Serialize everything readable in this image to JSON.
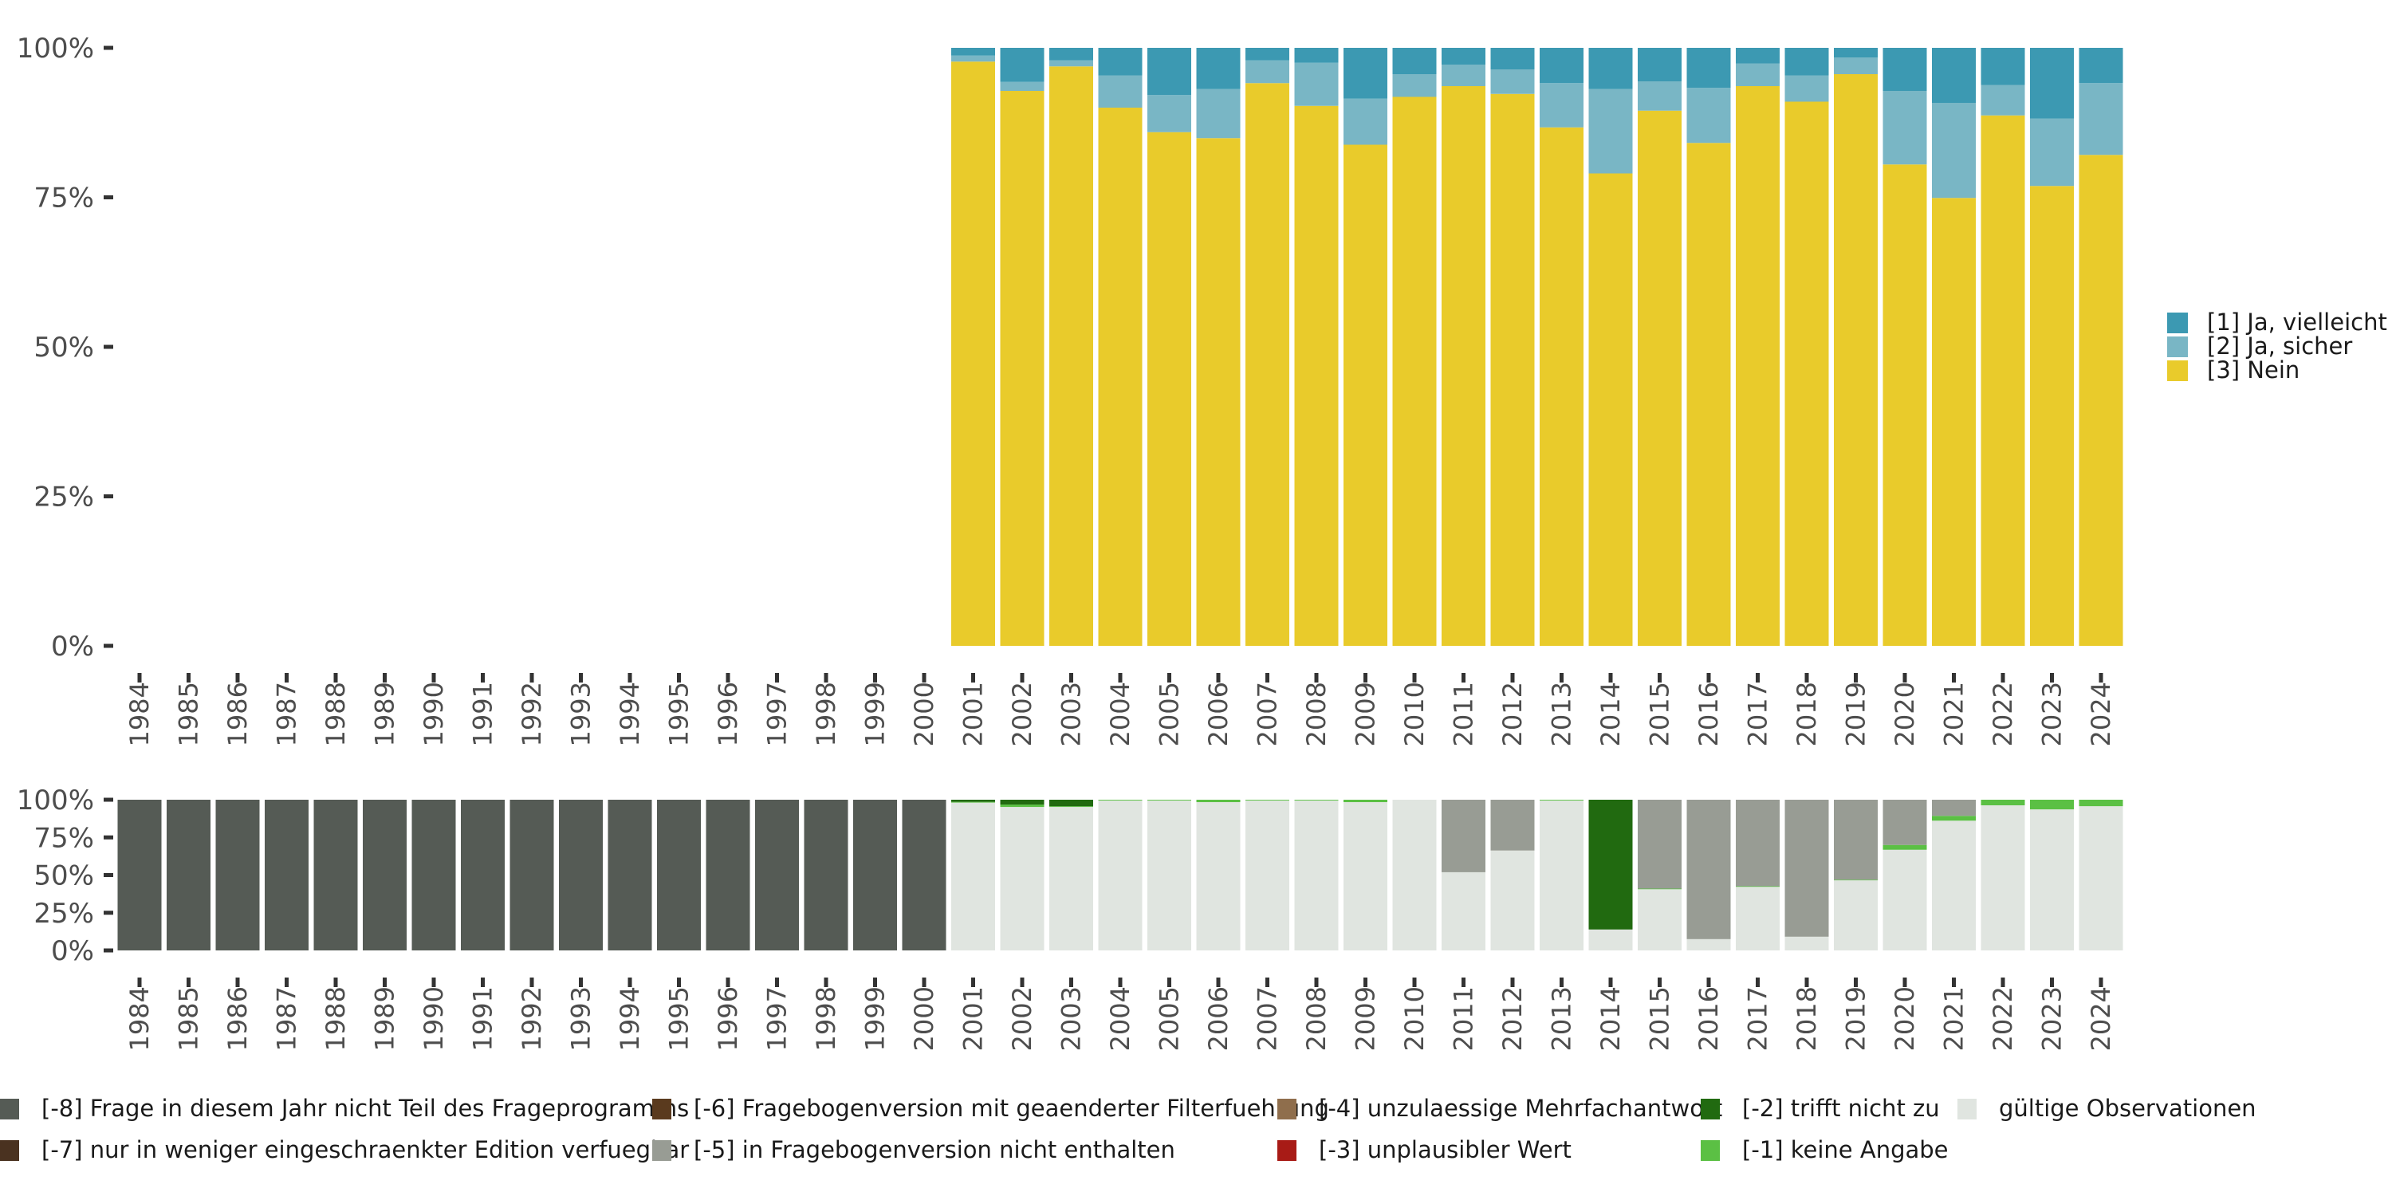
{
  "chart_data": [
    {
      "type": "bar",
      "stacked": true,
      "normalized": true,
      "title": "",
      "xlabel": "",
      "ylabel": "",
      "ylim": [
        0,
        1
      ],
      "yticks": [
        "0%",
        "25%",
        "50%",
        "75%",
        "100%"
      ],
      "legend_position": "right",
      "categories": [
        "1984",
        "1985",
        "1986",
        "1987",
        "1988",
        "1989",
        "1990",
        "1991",
        "1992",
        "1993",
        "1994",
        "1995",
        "1996",
        "1997",
        "1998",
        "1999",
        "2000",
        "2001",
        "2002",
        "2003",
        "2004",
        "2005",
        "2006",
        "2007",
        "2008",
        "2009",
        "2010",
        "2011",
        "2012",
        "2013",
        "2014",
        "2015",
        "2016",
        "2017",
        "2018",
        "2019",
        "2020",
        "2021",
        "2022",
        "2023",
        "2024"
      ],
      "series": [
        {
          "name": "[3] Nein",
          "color": "#E9CB2B",
          "values": [
            null,
            null,
            null,
            null,
            null,
            null,
            null,
            null,
            null,
            null,
            null,
            null,
            null,
            null,
            null,
            null,
            null,
            97.7,
            92.8,
            96.9,
            90.0,
            85.9,
            84.9,
            94.1,
            90.3,
            83.8,
            91.8,
            93.6,
            92.3,
            86.7,
            79.0,
            89.5,
            84.1,
            93.6,
            91.0,
            95.6,
            80.5,
            74.9,
            88.7,
            76.9,
            82.1
          ]
        },
        {
          "name": "[2] Ja, sicher",
          "color": "#79B6C5",
          "values": [
            null,
            null,
            null,
            null,
            null,
            null,
            null,
            null,
            null,
            null,
            null,
            null,
            null,
            null,
            null,
            null,
            null,
            1.0,
            1.5,
            1.0,
            5.4,
            6.2,
            8.2,
            3.8,
            7.2,
            7.7,
            3.8,
            3.6,
            4.1,
            7.4,
            14.1,
            4.9,
            9.2,
            3.8,
            4.4,
            2.8,
            12.3,
            15.9,
            5.1,
            11.3,
            12.0
          ]
        },
        {
          "name": "[1] Ja, vielleicht",
          "color": "#3C99B2",
          "values": [
            null,
            null,
            null,
            null,
            null,
            null,
            null,
            null,
            null,
            null,
            null,
            null,
            null,
            null,
            null,
            null,
            null,
            1.3,
            5.7,
            2.1,
            4.6,
            7.9,
            6.9,
            2.1,
            2.5,
            8.5,
            4.4,
            2.8,
            3.6,
            5.9,
            6.9,
            5.6,
            6.7,
            2.6,
            4.6,
            1.6,
            7.2,
            9.2,
            6.2,
            11.8,
            5.9
          ]
        }
      ],
      "legend": [
        "[1] Ja, vielleicht",
        "[2] Ja, sicher",
        "[3] Nein"
      ]
    },
    {
      "type": "bar",
      "stacked": true,
      "normalized": true,
      "title": "",
      "xlabel": "",
      "ylabel": "",
      "ylim": [
        0,
        1
      ],
      "yticks": [
        "0%",
        "25%",
        "50%",
        "75%",
        "100%"
      ],
      "legend_position": "bottom",
      "categories": [
        "1984",
        "1985",
        "1986",
        "1987",
        "1988",
        "1989",
        "1990",
        "1991",
        "1992",
        "1993",
        "1994",
        "1995",
        "1996",
        "1997",
        "1998",
        "1999",
        "2000",
        "2001",
        "2002",
        "2003",
        "2004",
        "2005",
        "2006",
        "2007",
        "2008",
        "2009",
        "2010",
        "2011",
        "2012",
        "2013",
        "2014",
        "2015",
        "2016",
        "2017",
        "2018",
        "2019",
        "2020",
        "2021",
        "2022",
        "2023",
        "2024"
      ],
      "series": [
        {
          "name": "gültige Observationen",
          "color": "#E0E5E0",
          "values": [
            0,
            0,
            0,
            0,
            0,
            0,
            0,
            0,
            0,
            0,
            0,
            0,
            0,
            0,
            0,
            0,
            0,
            98.1,
            95.2,
            95.2,
            99.5,
            99.5,
            98.4,
            99.5,
            99.5,
            98.4,
            100,
            51.9,
            66.3,
            99.5,
            13.9,
            40.6,
            7.5,
            42.2,
            9.1,
            46.5,
            66.8,
            86.1,
            96.3,
            93.6,
            95.7
          ]
        },
        {
          "name": "[-1] keine Angabe",
          "color": "#5BC044",
          "values": [
            0,
            0,
            0,
            0,
            0,
            0,
            0,
            0,
            0,
            0,
            0,
            0,
            0,
            0,
            0,
            0,
            0,
            0.5,
            1.6,
            0.5,
            0.5,
            0.5,
            1.6,
            0.5,
            0.5,
            1.6,
            0,
            0,
            0,
            0.5,
            0,
            0.4,
            0,
            0.4,
            0,
            0.4,
            3.2,
            3.2,
            3.7,
            6.4,
            4.3
          ]
        },
        {
          "name": "[-2] trifft nicht zu",
          "color": "#216A10",
          "values": [
            0,
            0,
            0,
            0,
            0,
            0,
            0,
            0,
            0,
            0,
            0,
            0,
            0,
            0,
            0,
            0,
            0,
            1.4,
            3.2,
            4.3,
            0,
            0,
            0,
            0,
            0,
            0,
            0,
            0,
            0,
            0,
            86.1,
            0,
            0,
            0,
            0,
            0,
            0,
            0,
            0,
            0,
            0
          ]
        },
        {
          "name": "[-5] in Fragebogenversion nicht enthalten",
          "color": "#989C94",
          "values": [
            0,
            0,
            0,
            0,
            0,
            0,
            0,
            0,
            0,
            0,
            0,
            0,
            0,
            0,
            0,
            0,
            0,
            0,
            0,
            0,
            0,
            0,
            0,
            0,
            0,
            0,
            0,
            48.1,
            33.7,
            0,
            0,
            59.0,
            92.5,
            57.4,
            90.9,
            53.1,
            30.0,
            10.7,
            0,
            0,
            0
          ]
        },
        {
          "name": "[-8] Frage in diesem Jahr nicht Teil des Frageprogramms",
          "color": "#555B55",
          "values": [
            100,
            100,
            100,
            100,
            100,
            100,
            100,
            100,
            100,
            100,
            100,
            100,
            100,
            100,
            100,
            100,
            100,
            0,
            0,
            0,
            0,
            0,
            0,
            0,
            0,
            0,
            0,
            0,
            0,
            0,
            0,
            0,
            0,
            0,
            0,
            0,
            0,
            0,
            0,
            0,
            0
          ]
        }
      ],
      "legend": [
        {
          "label": "[-8] Frage in diesem Jahr nicht Teil des Frageprogramms",
          "color": "#555B55"
        },
        {
          "label": "[-6] Fragebogenversion mit geaenderter Filterfuehrung",
          "color": "#5A3A1E"
        },
        {
          "label": "[-4] unzulaessige Mehrfachantwort",
          "color": "#8F6E4C"
        },
        {
          "label": "[-2] trifft nicht zu",
          "color": "#216A10"
        },
        {
          "label": "gültige Observationen",
          "color": "#E0E5E0"
        },
        {
          "label": "[-7] nur in weniger eingeschraenkter Edition verfuegbar",
          "color": "#4A3220"
        },
        {
          "label": "[-5] in Fragebogenversion nicht enthalten",
          "color": "#989C94"
        },
        {
          "label": "[-3] unplausibler Wert",
          "color": "#A81B16"
        },
        {
          "label": "[-1] keine Angabe",
          "color": "#5BC044"
        }
      ]
    }
  ]
}
